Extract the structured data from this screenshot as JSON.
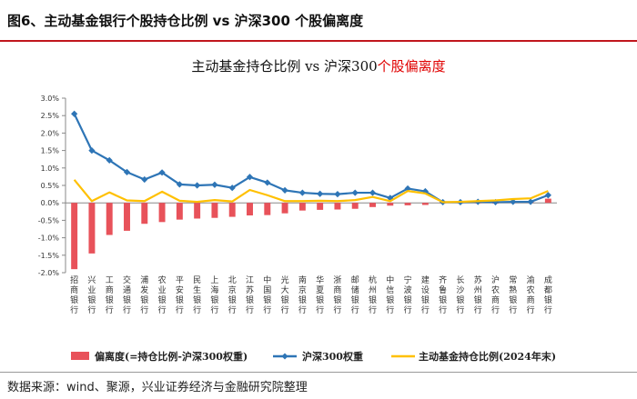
{
  "figure": {
    "label": "图6、主动基金银行个股持仓比例  vs  沪深300 个股偏离度",
    "source": "数据来源：wind、聚源，兴业证券经济与金融研究院整理"
  },
  "chart_data": {
    "type": "bar+line",
    "title_parts": [
      "主动基金持仓比例 vs 沪深300",
      "个股偏离度"
    ],
    "title_colors": [
      "#111111",
      "#e00000"
    ],
    "categories": [
      "招商银行",
      "兴业银行",
      "工商银行",
      "交通银行",
      "浦发银行",
      "农业银行",
      "平安银行",
      "民生银行",
      "上海银行",
      "北京银行",
      "江苏银行",
      "中国银行",
      "光大银行",
      "南京银行",
      "华夏银行",
      "浙商银行",
      "邮储银行",
      "杭州银行",
      "中信银行",
      "宁波银行",
      "建设银行",
      "齐鲁银行",
      "长沙银行",
      "苏州银行",
      "沪农商行",
      "常熟银行",
      "渝农商行",
      "成都银行"
    ],
    "ylim": [
      -2.0,
      3.0
    ],
    "yticks": [
      "-2.0%",
      "-1.5%",
      "-1.0%",
      "-0.5%",
      "0.0%",
      "0.5%",
      "1.0%",
      "1.5%",
      "2.0%",
      "2.5%",
      "3.0%"
    ],
    "ytick_values": [
      -2.0,
      -1.5,
      -1.0,
      -0.5,
      0.0,
      0.5,
      1.0,
      1.5,
      2.0,
      2.5,
      3.0
    ],
    "series": [
      {
        "name": "偏离度(=持仓比例-沪深300权重)",
        "kind": "bar",
        "color": "#e8525a",
        "values": [
          -1.9,
          -1.45,
          -0.92,
          -0.8,
          -0.6,
          -0.55,
          -0.48,
          -0.45,
          -0.43,
          -0.4,
          -0.36,
          -0.35,
          -0.3,
          -0.22,
          -0.2,
          -0.19,
          -0.17,
          -0.12,
          -0.08,
          -0.07,
          -0.06,
          -0.01,
          -0.01,
          -0.01,
          -0.02,
          0.02,
          0.03,
          0.12
        ]
      },
      {
        "name": "沪深300权重",
        "kind": "line",
        "color": "#2e75b6",
        "marker": "diamond",
        "values": [
          2.55,
          1.5,
          1.22,
          0.88,
          0.67,
          0.87,
          0.53,
          0.5,
          0.52,
          0.43,
          0.74,
          0.58,
          0.36,
          0.29,
          0.26,
          0.25,
          0.29,
          0.29,
          0.14,
          0.41,
          0.33,
          0.02,
          0.02,
          0.03,
          0.02,
          0.03,
          0.03,
          0.22
        ]
      },
      {
        "name": "主动基金持仓比例(2024年末)",
        "kind": "line",
        "color": "#ffc000",
        "values": [
          0.66,
          0.05,
          0.3,
          0.07,
          0.05,
          0.32,
          0.06,
          0.03,
          0.08,
          0.04,
          0.37,
          0.22,
          0.05,
          0.05,
          0.06,
          0.05,
          0.08,
          0.17,
          0.05,
          0.34,
          0.27,
          0.02,
          0.03,
          0.05,
          0.07,
          0.11,
          0.13,
          0.34
        ]
      }
    ],
    "legend_position": "bottom"
  }
}
